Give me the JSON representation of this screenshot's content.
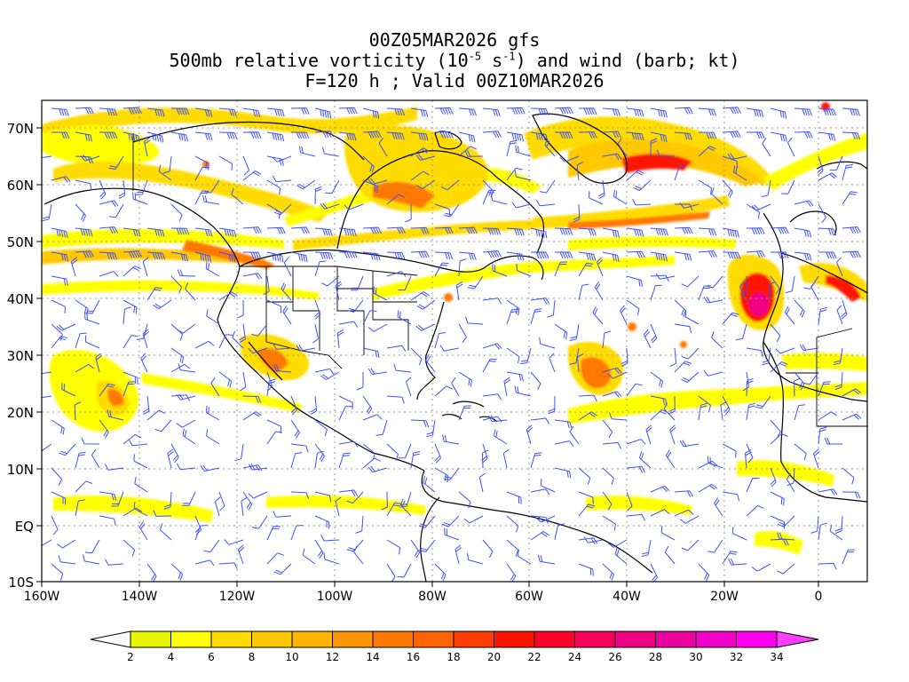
{
  "title": {
    "line1": "00Z05MAR2026 gfs",
    "line2_pre": "500mb relative vorticity (10",
    "line2_exp1": "-5",
    "line2_mid": " s",
    "line2_exp2": "-1",
    "line2_post": ") and wind (barb; kt)",
    "line3": "F=120 h ; Valid 00Z10MAR2026"
  },
  "map": {
    "lat_labels": [
      "70N",
      "60N",
      "50N",
      "40N",
      "30N",
      "20N",
      "10N",
      "EQ",
      "10S"
    ],
    "lon_labels": [
      "160W",
      "140W",
      "120W",
      "100W",
      "80W",
      "60W",
      "40W",
      "20W",
      "0"
    ]
  },
  "colorbar": {
    "labels": [
      "2",
      "4",
      "6",
      "8",
      "10",
      "12",
      "14",
      "16",
      "18",
      "20",
      "22",
      "24",
      "26",
      "28",
      "30",
      "32",
      "34"
    ],
    "colors": [
      "#e6f500",
      "#ffff00",
      "#ffdc00",
      "#ffc800",
      "#ffb400",
      "#ff9600",
      "#ff7800",
      "#ff6400",
      "#ff3c00",
      "#ff1400",
      "#ff0028",
      "#f5005a",
      "#f00082",
      "#eb00a0",
      "#f000c8",
      "#ff00f0"
    ],
    "low_color": "#ffffff",
    "high_color": "#ff3cff"
  }
}
